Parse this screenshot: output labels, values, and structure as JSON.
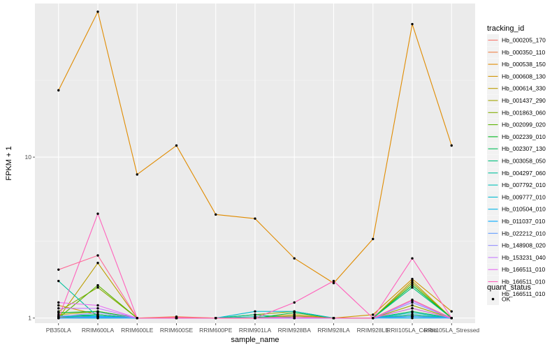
{
  "chart_data": {
    "type": "line",
    "xlabel": "sample_name",
    "ylabel": "FPKM + 1",
    "y_scale": "log10",
    "ylim": [
      0.93,
      90
    ],
    "y_ticks": [
      {
        "value": 1,
        "label": "1"
      },
      {
        "value": 10,
        "label": "10"
      }
    ],
    "categories": [
      "PB350LA",
      "RRIM600LA",
      "RRIM600LE",
      "RRIM600SE",
      "RRIM600PE",
      "RRIM901LA",
      "RRIM928BA",
      "RRIM928LA",
      "RRIM928LE",
      "RRII105LA_Control",
      "RRII105LA_Stressed"
    ],
    "legend_position": "right",
    "grid": true,
    "legend": {
      "color_title": "tracking_id",
      "shape_title": "quant_status",
      "shape_entries": [
        "OK"
      ]
    },
    "series": [
      {
        "name": "Hb_000205_170",
        "color": "#F8766D",
        "values": [
          1.0,
          1.03,
          1.0,
          1.0,
          1.0,
          1.0,
          1.0,
          1.0,
          1.0,
          1.05,
          1.0
        ]
      },
      {
        "name": "Hb_000350_110",
        "color": "#EE8044",
        "values": [
          1.01,
          1.02,
          1.0,
          1.02,
          1.0,
          1.0,
          1.02,
          1.0,
          1.0,
          1.03,
          1.0
        ]
      },
      {
        "name": "Hb_000538_150",
        "color": "#E08B00",
        "values": [
          26.0,
          80.0,
          7.8,
          11.8,
          4.4,
          4.15,
          2.35,
          1.65,
          3.1,
          67.0,
          11.8
        ]
      },
      {
        "name": "Hb_000608_130",
        "color": "#D09400",
        "values": [
          1.2,
          1.05,
          1.0,
          1.0,
          1.0,
          1.0,
          1.05,
          1.0,
          1.05,
          1.75,
          1.1
        ]
      },
      {
        "name": "Hb_000614_330",
        "color": "#BB9D00",
        "values": [
          1.0,
          2.2,
          1.0,
          1.0,
          1.0,
          1.0,
          1.0,
          1.0,
          1.0,
          1.7,
          1.0
        ]
      },
      {
        "name": "Hb_001437_290",
        "color": "#A3A500",
        "values": [
          1.05,
          1.1,
          1.0,
          1.0,
          1.0,
          1.0,
          1.0,
          1.0,
          1.0,
          1.2,
          1.0
        ]
      },
      {
        "name": "Hb_001863_060",
        "color": "#85AD00",
        "values": [
          1.1,
          1.55,
          1.0,
          1.0,
          1.0,
          1.05,
          1.1,
          1.0,
          1.0,
          1.65,
          1.0
        ]
      },
      {
        "name": "Hb_002099_020",
        "color": "#5BB300",
        "values": [
          1.0,
          1.6,
          1.0,
          1.0,
          1.0,
          1.0,
          1.03,
          1.0,
          1.0,
          1.15,
          1.0
        ]
      },
      {
        "name": "Hb_002239_010",
        "color": "#00B81F",
        "values": [
          1.08,
          1.1,
          1.0,
          1.0,
          1.0,
          1.0,
          1.08,
          1.0,
          1.0,
          1.6,
          1.0
        ]
      },
      {
        "name": "Hb_002307_130",
        "color": "#00BC59",
        "values": [
          1.0,
          1.05,
          1.0,
          1.0,
          1.0,
          1.0,
          1.0,
          1.0,
          1.0,
          1.1,
          1.0
        ]
      },
      {
        "name": "Hb_003058_050",
        "color": "#00BF7D",
        "values": [
          1.03,
          1.05,
          1.0,
          1.0,
          1.0,
          1.05,
          1.0,
          1.0,
          1.0,
          1.55,
          1.0
        ]
      },
      {
        "name": "Hb_004297_060",
        "color": "#00C19C",
        "values": [
          1.7,
          1.02,
          1.0,
          1.0,
          1.0,
          1.0,
          1.0,
          1.0,
          1.0,
          1.05,
          1.0
        ]
      },
      {
        "name": "Hb_007792_010",
        "color": "#00C0B8",
        "values": [
          1.0,
          1.0,
          1.0,
          1.0,
          1.0,
          1.02,
          1.0,
          1.0,
          1.0,
          1.03,
          1.0
        ]
      },
      {
        "name": "Hb_009777_010",
        "color": "#00BCD1",
        "values": [
          1.02,
          1.03,
          1.0,
          1.0,
          1.0,
          1.1,
          1.1,
          1.0,
          1.0,
          1.08,
          1.0
        ]
      },
      {
        "name": "Hb_010504_010",
        "color": "#00B5E6",
        "values": [
          1.0,
          1.0,
          1.0,
          1.0,
          1.0,
          1.0,
          1.0,
          1.0,
          1.0,
          1.0,
          1.0
        ]
      },
      {
        "name": "Hb_011037_010",
        "color": "#00A9FF",
        "values": [
          1.0,
          1.02,
          1.0,
          1.0,
          1.0,
          1.0,
          1.0,
          1.0,
          1.0,
          1.02,
          1.0
        ]
      },
      {
        "name": "Hb_022212_010",
        "color": "#619CFF",
        "values": [
          1.0,
          1.01,
          1.0,
          1.0,
          1.0,
          1.0,
          1.0,
          1.0,
          1.0,
          1.02,
          1.0
        ]
      },
      {
        "name": "Hb_148908_020",
        "color": "#9590FF",
        "values": [
          1.02,
          1.08,
          1.0,
          1.0,
          1.0,
          1.0,
          1.0,
          1.0,
          1.0,
          1.25,
          1.0
        ]
      },
      {
        "name": "Hb_153231_040",
        "color": "#C77CFF",
        "values": [
          1.15,
          1.15,
          1.0,
          1.0,
          1.0,
          1.0,
          1.0,
          1.0,
          1.0,
          1.28,
          1.0
        ]
      },
      {
        "name": "Hb_166511_010",
        "color": "#E76BF3",
        "values": [
          1.25,
          1.2,
          1.0,
          1.0,
          1.0,
          1.0,
          1.0,
          1.0,
          1.0,
          1.15,
          1.0
        ]
      },
      {
        "name": "Hb_166511_010",
        "color": "#FF62BC",
        "values": [
          1.0,
          4.45,
          1.0,
          1.0,
          1.0,
          1.0,
          1.25,
          1.7,
          1.0,
          2.35,
          1.0
        ]
      },
      {
        "name": "Hb_166511_010",
        "color": "#FF6A98",
        "values": [
          2.0,
          2.45,
          1.0,
          1.01,
          1.0,
          1.0,
          1.02,
          1.0,
          1.0,
          1.3,
          1.0
        ]
      }
    ]
  }
}
